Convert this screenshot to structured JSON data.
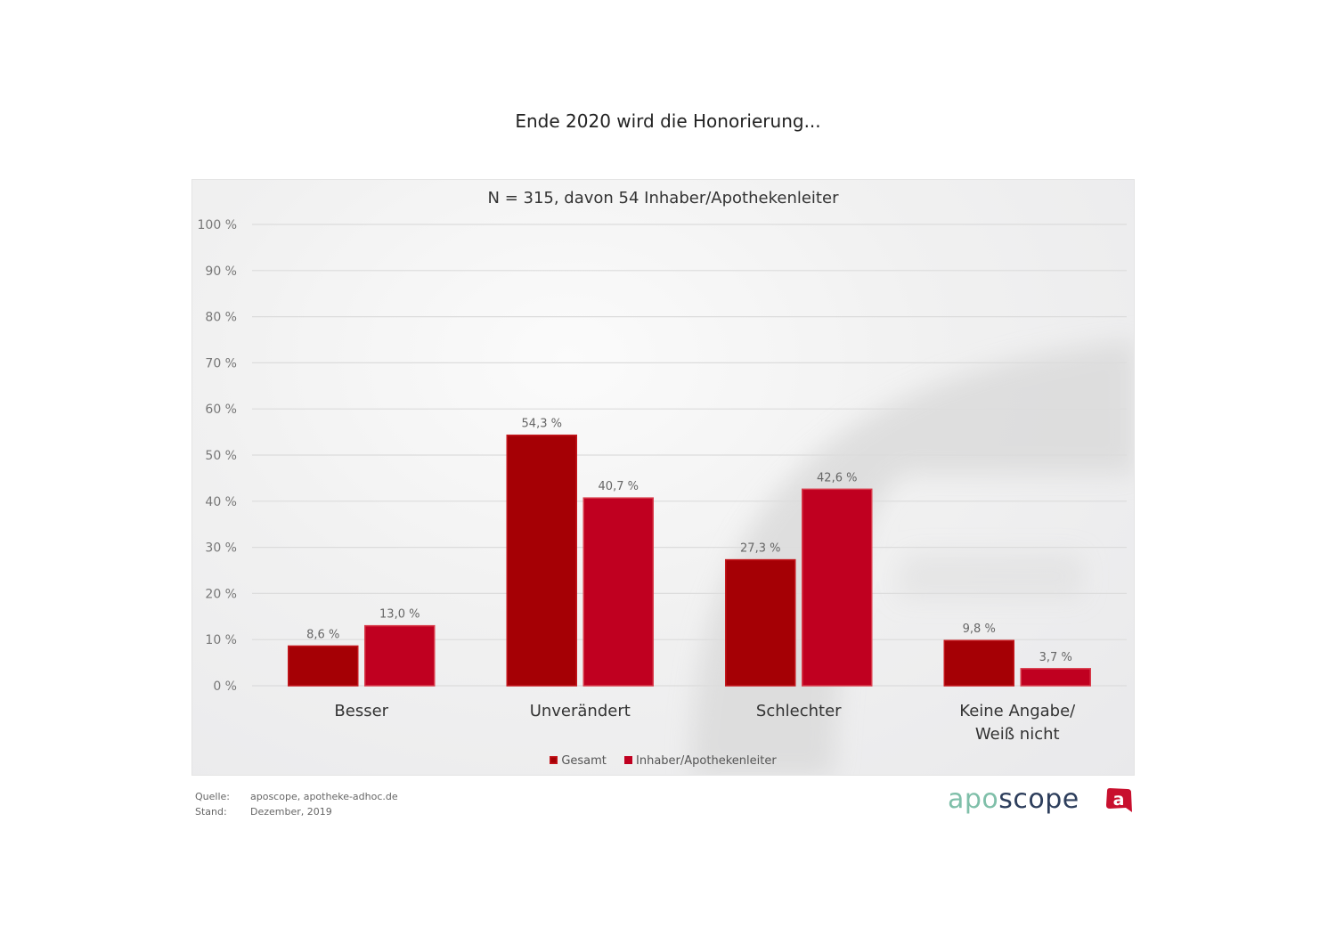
{
  "title": "Ende 2020 wird die Honorierung...",
  "footer": {
    "source_label": "Quelle:",
    "source_value": "aposcope, apotheke-adhoc.de",
    "date_label": "Stand:",
    "date_value": "Dezember,  2019"
  },
  "logo": {
    "text_part1": "apo",
    "text_part2": "scope",
    "badge_letter": "a",
    "color_part1": "#7fbfa9",
    "color_part2": "#2d3e5c",
    "badge_color": "#c8102e"
  },
  "chart_data": {
    "type": "bar",
    "title": "Ende 2020 wird die Honorierung...",
    "subtitle": "N = 315, davon 54 Inhaber/Apothekenleiter",
    "xlabel": "",
    "ylabel": "",
    "ylim": [
      0,
      100
    ],
    "yticks": [
      0,
      10,
      20,
      30,
      40,
      50,
      60,
      70,
      80,
      90,
      100
    ],
    "ytick_labels": [
      "0 %",
      "10 %",
      "20 %",
      "30 %",
      "40 %",
      "50 %",
      "60 %",
      "70 %",
      "80 %",
      "90 %",
      "100 %"
    ],
    "grid": true,
    "legend_position": "bottom",
    "categories": [
      [
        "Besser"
      ],
      [
        "Unverändert"
      ],
      [
        "Schlechter"
      ],
      [
        "Keine Angabe/",
        "Weiß nicht"
      ]
    ],
    "series": [
      {
        "name": "Gesamt",
        "color": "#a50005",
        "values": [
          8.6,
          54.3,
          27.3,
          9.8
        ],
        "labels": [
          "8,6 %",
          "54,3 %",
          "27,3 %",
          "9,8 %"
        ]
      },
      {
        "name": "Inhaber/Apothekenleiter",
        "color": "#c00020",
        "values": [
          13.0,
          40.7,
          42.6,
          3.7
        ],
        "labels": [
          "13,0 %",
          "40,7 %",
          "42,6 %",
          "3,7 %"
        ]
      }
    ]
  }
}
